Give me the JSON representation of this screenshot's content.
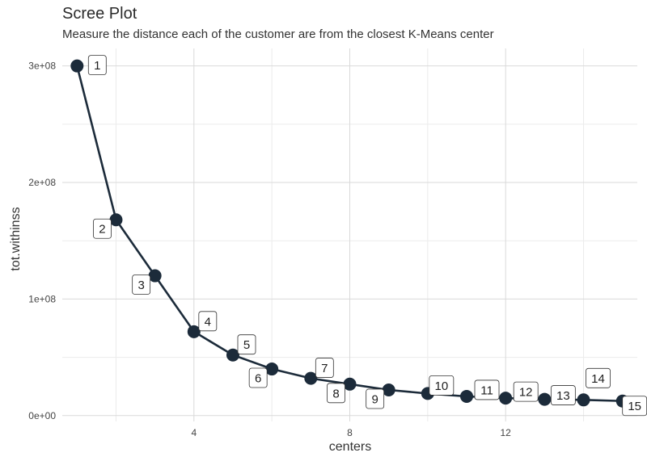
{
  "chart_data": {
    "type": "line",
    "title": "Scree Plot",
    "subtitle": "Measure the distance each of the customer are from the closest K-Means center",
    "xlabel": "centers",
    "ylabel": "tot.withinss",
    "xlim": [
      1,
      15
    ],
    "ylim": [
      0,
      300000000
    ],
    "x_ticks": [
      4,
      8,
      12
    ],
    "y_ticks": [
      0,
      100000000,
      200000000,
      300000000
    ],
    "y_tick_labels": [
      "0e+00",
      "1e+08",
      "2e+08",
      "3e+08"
    ],
    "grid": true,
    "color": "#1c2b3a",
    "series": [
      {
        "x": [
          1,
          2,
          3,
          4,
          5,
          6,
          7,
          8,
          9,
          10,
          11,
          12,
          13,
          14,
          15
        ],
        "values": [
          300000000,
          168000000,
          120000000,
          72000000,
          52000000,
          40000000,
          32000000,
          27000000,
          22000000,
          19000000,
          16500000,
          15000000,
          14000000,
          13500000,
          12500000
        ],
        "point_labels": [
          "1",
          "2",
          "3",
          "4",
          "5",
          "6",
          "7",
          "8",
          "9",
          "10",
          "11",
          "12",
          "13",
          "14",
          "15"
        ]
      }
    ]
  }
}
